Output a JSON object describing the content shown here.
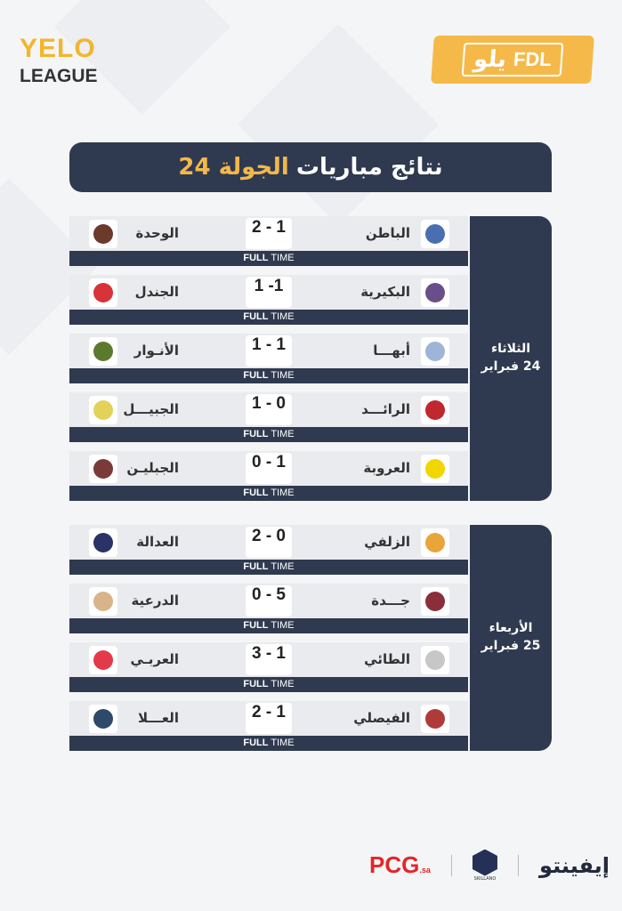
{
  "header": {
    "left_logo_top": "YELO",
    "left_logo_bottom": "LEAGUE",
    "right_logo_ar": "يلو",
    "right_logo_en": "FDL"
  },
  "title": {
    "main": "نتائج مباريات",
    "highlight": "الجولة 24"
  },
  "full_time": {
    "bold": "FULL",
    "light": "TIME"
  },
  "days": [
    {
      "day": "الثلاثاء",
      "date": "24 فبراير",
      "matches": [
        {
          "home": "الباطن",
          "away": "الوحدة",
          "score": "2 - 1",
          "home_color": "#4a6fb0",
          "away_color": "#6b3a2a"
        },
        {
          "home": "البكيرية",
          "away": "الجندل",
          "score": "1 -1",
          "home_color": "#6a4e8a",
          "away_color": "#d8323a"
        },
        {
          "home": "أبهـــا",
          "away": "الأنـوار",
          "score": "1 - 1",
          "home_color": "#9fb5d6",
          "away_color": "#5c7a2e"
        },
        {
          "home": "الرائـــد",
          "away": "الجبيـــل",
          "score": "1 - 0",
          "home_color": "#c0282e",
          "away_color": "#e2d25a"
        },
        {
          "home": "العروبة",
          "away": "الجبليـن",
          "score": "0 - 1",
          "home_color": "#f2d600",
          "away_color": "#7a3a3a"
        }
      ]
    },
    {
      "day": "الأربعاء",
      "date": "25 فبراير",
      "matches": [
        {
          "home": "الزلفي",
          "away": "العدالة",
          "score": "2 - 0",
          "home_color": "#e9a43a",
          "away_color": "#2a3266"
        },
        {
          "home": "جـــدة",
          "away": "الدرعية",
          "score": "0 - 5",
          "home_color": "#8a2f3a",
          "away_color": "#d9b48a"
        },
        {
          "home": "الطائي",
          "away": "العربـي",
          "score": "3 - 1",
          "home_color": "#c7c7c7",
          "away_color": "#e33a4a"
        },
        {
          "home": "الفيصلي",
          "away": "العـــلا",
          "score": "2 - 1",
          "home_color": "#b03a3a",
          "away_color": "#2d4a6a"
        }
      ]
    }
  ],
  "sponsors": {
    "pcg": "PCG",
    "pcg_suffix": ".sa",
    "skillano": "SKILLANO",
    "infinito": "إيفينتو"
  }
}
